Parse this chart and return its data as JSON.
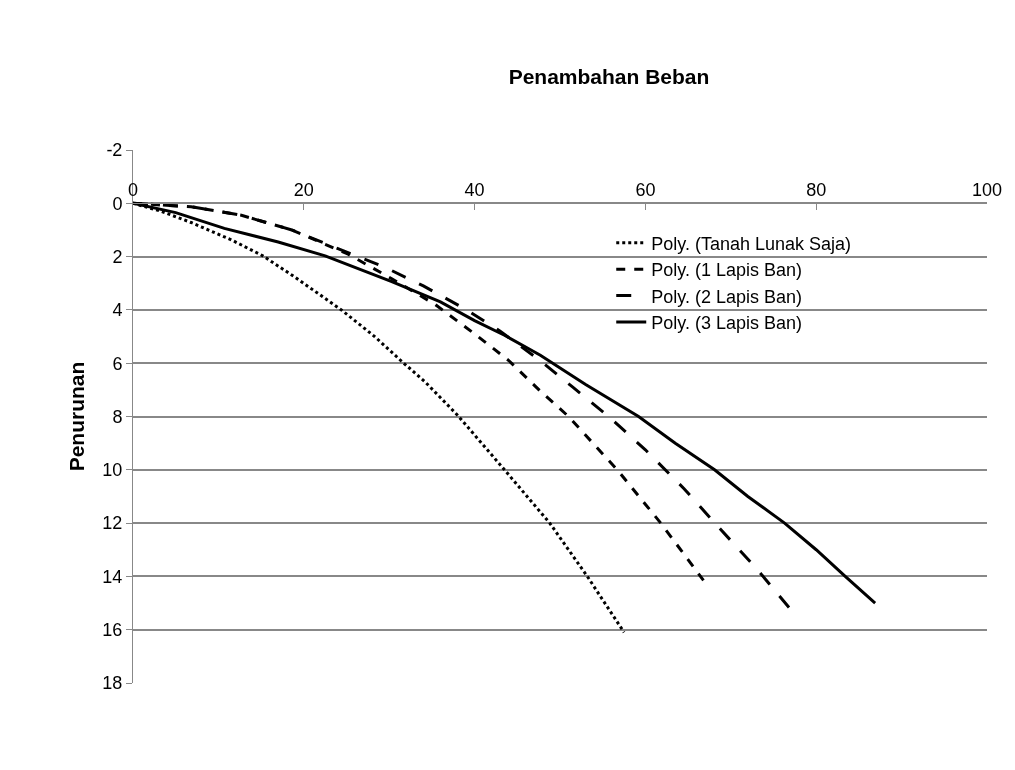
{
  "chart_data": {
    "type": "line",
    "title": "Penambahan Beban",
    "ylabel": "Penurunan",
    "xlim": [
      0,
      100
    ],
    "xticks": [
      0,
      20,
      40,
      60,
      80,
      100
    ],
    "ylim": [
      18,
      -2
    ],
    "yticks": [
      -2,
      0,
      2,
      4,
      6,
      8,
      10,
      12,
      14,
      16,
      18
    ],
    "grid": "y",
    "legend": "right",
    "marker": "none",
    "series": [
      {
        "name": "Poly. (Tanah Lunak Saja)",
        "color": "#000000",
        "line_style": "dotted",
        "x": [
          0,
          3.3,
          6.8,
          11.5,
          15.2,
          19,
          24.4,
          28.3,
          31.6,
          34.2,
          38,
          43.5,
          48.8,
          53.2,
          57.5
        ],
        "values": [
          0,
          0.3,
          0.72,
          1.37,
          1.97,
          2.78,
          4.0,
          5.0,
          5.97,
          6.7,
          7.95,
          10,
          12,
          14,
          16.1
        ]
      },
      {
        "name": "Poly. (1 Lapis Ban)",
        "color": "#000000",
        "line_style": "dashed",
        "x": [
          0,
          6.8,
          12.7,
          18.6,
          25.2,
          30.3,
          35.4,
          40,
          44,
          47.7,
          51,
          56.7,
          61.8,
          66.8
        ],
        "values": [
          0,
          0.13,
          0.45,
          1.0,
          1.91,
          2.83,
          3.8,
          4.9,
          5.9,
          7.05,
          8,
          10,
          12,
          14.15
        ]
      },
      {
        "name": "Poly. (2 Lapis Ban)",
        "color": "#000000",
        "line_style": "longdash",
        "x": [
          0,
          6.8,
          12.7,
          18.6,
          24,
          29.5,
          34,
          38.9,
          43,
          47.5,
          51.5,
          55.7,
          60,
          64.5,
          68.7,
          73,
          76.9
        ],
        "values": [
          0,
          0.13,
          0.45,
          1.0,
          1.7,
          2.4,
          3.1,
          3.97,
          4.8,
          5.86,
          6.9,
          8,
          9.25,
          10.7,
          12.2,
          13.7,
          15.2
        ]
      },
      {
        "name": "Poly. (3 Lapis Ban)",
        "color": "#000000",
        "line_style": "solid",
        "x": [
          0,
          5,
          10.7,
          17,
          22.5,
          30.3,
          36,
          40,
          43.5,
          47.7,
          53,
          59.2,
          63.5,
          68.1,
          72,
          76.3,
          80,
          83.4,
          86.9
        ],
        "values": [
          0,
          0.35,
          0.94,
          1.45,
          1.97,
          2.94,
          3.7,
          4.4,
          4.95,
          5.7,
          6.8,
          8,
          9,
          10,
          11,
          12,
          13,
          14,
          15
        ]
      }
    ]
  }
}
